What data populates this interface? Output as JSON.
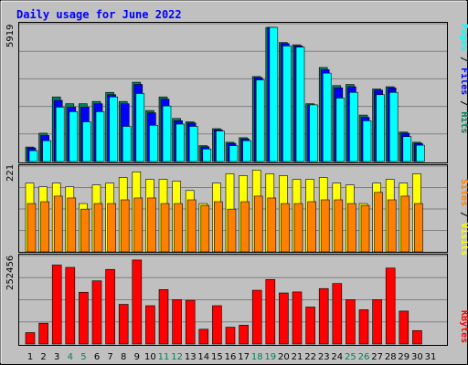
{
  "chart_data": {
    "type": "bar",
    "title": "Daily usage for June 2022",
    "categories": [
      "1",
      "2",
      "3",
      "4",
      "5",
      "6",
      "7",
      "8",
      "9",
      "10",
      "11",
      "12",
      "13",
      "14",
      "15",
      "16",
      "17",
      "18",
      "19",
      "20",
      "21",
      "22",
      "23",
      "24",
      "25",
      "26",
      "27",
      "28",
      "29",
      "30",
      "31"
    ],
    "weekend_days": [
      "4",
      "5",
      "11",
      "12",
      "18",
      "19",
      "25",
      "26"
    ],
    "panels": {
      "top": {
        "axis_max_label": "5919",
        "ylim": [
          0,
          5919
        ],
        "series": [
          {
            "name": "Hits",
            "color": "#00805c",
            "values": [
              640,
              1250,
              2850,
              2550,
              2550,
              2650,
              3050,
              2650,
              3500,
              2250,
              2850,
              1900,
              1750,
              700,
              1450,
              850,
              1050,
              3750,
              5919,
              5250,
              5150,
              2550,
              4150,
              3350,
              3400,
              2050,
              3200,
              3300,
              1300,
              850,
              0
            ]
          },
          {
            "name": "Files",
            "color": "#0000ff",
            "values": [
              600,
              1150,
              2700,
              2400,
              2400,
              2550,
              2950,
              2550,
              3400,
              2150,
              2750,
              1800,
              1700,
              650,
              1400,
              800,
              1000,
              3700,
              5919,
              5200,
              5100,
              2500,
              4050,
              3250,
              3300,
              1950,
              3150,
              3250,
              1250,
              800,
              0
            ]
          },
          {
            "name": "Pages",
            "color": "#00ffff",
            "values": [
              480,
              920,
              2400,
              2200,
              1750,
              2200,
              2850,
              1550,
              3000,
              1600,
              2450,
              1650,
              1550,
              550,
              1350,
              700,
              920,
              3600,
              5919,
              5100,
              5050,
              2500,
              3900,
              2800,
              3050,
              1800,
              2950,
              3050,
              1100,
              720,
              0
            ]
          }
        ],
        "legend": [
          "Pages",
          "Files",
          "Hits"
        ],
        "legend_colors": [
          "#00ffff",
          "#0000ff",
          "#00805c"
        ],
        "legend_separator": " / "
      },
      "middle": {
        "axis_max_label": "221",
        "ylim": [
          0,
          221
        ],
        "series": [
          {
            "name": "Visits",
            "color": "#ffff00",
            "values": [
              185,
              175,
              185,
              175,
              130,
              180,
              185,
              200,
              215,
              195,
              195,
              190,
              165,
              130,
              185,
              210,
              205,
              220,
              210,
              205,
              195,
              195,
              200,
              185,
              180,
              130,
              185,
              195,
              185,
              210,
              0
            ]
          },
          {
            "name": "Sites",
            "color": "#ff8000",
            "values": [
              130,
              135,
              150,
              145,
              115,
              130,
              130,
              140,
              145,
              145,
              130,
              130,
              140,
              125,
              135,
              115,
              135,
              150,
              145,
              130,
              130,
              135,
              140,
              140,
              130,
              125,
              160,
              140,
              150,
              130,
              0
            ]
          }
        ],
        "legend": [
          "Sites",
          "Visits"
        ],
        "legend_colors": [
          "#ff8000",
          "#ffff00"
        ],
        "legend_separator": " / "
      },
      "bottom": {
        "axis_max_label": "252456",
        "ylim": [
          0,
          252456
        ],
        "series": [
          {
            "name": "KBytes",
            "color": "#ff0000",
            "values": [
              34000,
              62000,
              235000,
              228000,
              154000,
              188000,
              222000,
              118000,
              250000,
              114000,
              162000,
              132000,
              130000,
              44000,
              114000,
              50000,
              56000,
              160000,
              192000,
              152000,
              155000,
              110000,
              165000,
              180000,
              132000,
              102000,
              132000,
              226000,
              98000,
              40000,
              0
            ]
          }
        ],
        "legend": [
          "KBytes"
        ],
        "legend_colors": [
          "#ff0000"
        ]
      }
    }
  }
}
